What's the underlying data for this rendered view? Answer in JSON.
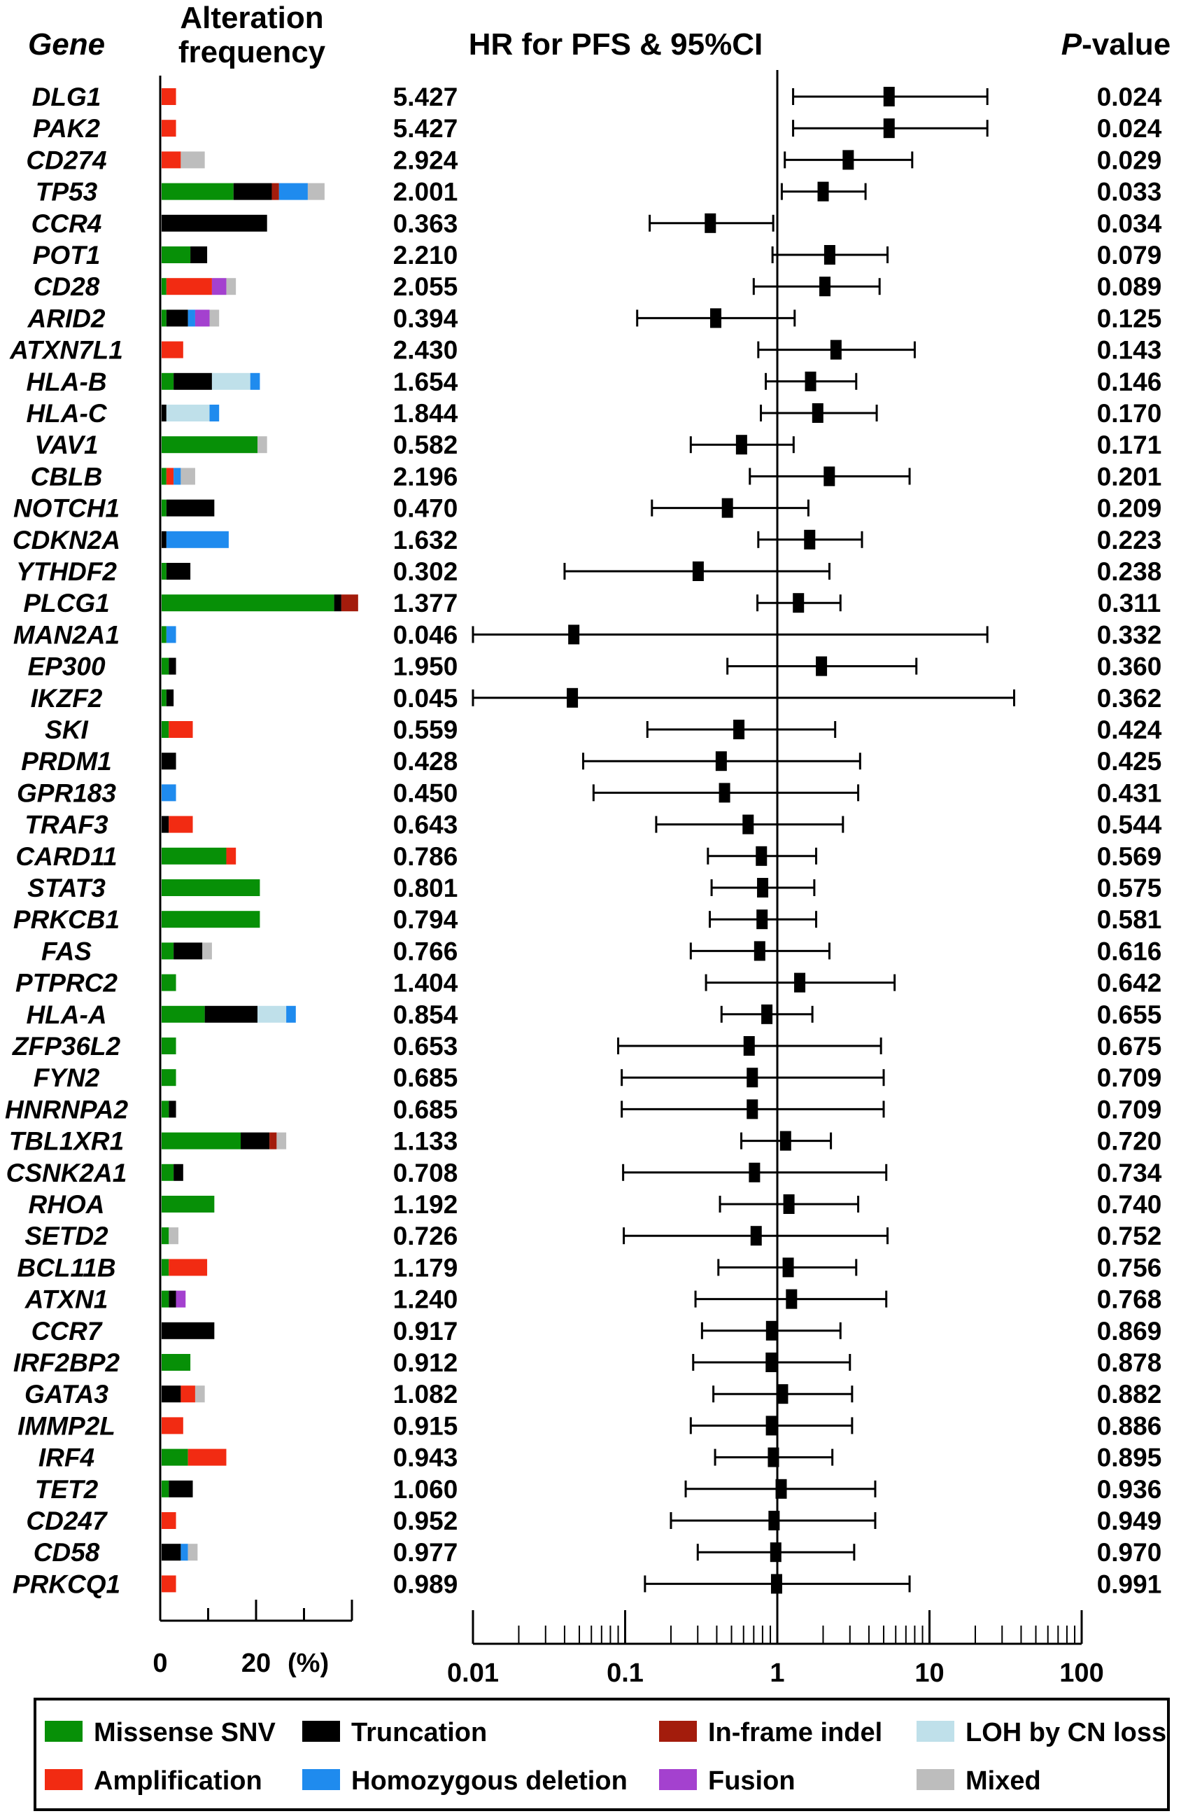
{
  "headers": {
    "gene": "Gene",
    "alteration_line1": "Alteration",
    "alteration_line2": "frequency",
    "hr": "HR for PFS & 95%CI",
    "pvalue_p": "P",
    "pvalue_rest": "-value"
  },
  "colors": {
    "missense": "#079007",
    "truncation": "#000000",
    "inframe": "#a31c0c",
    "loh": "#bfe0ea",
    "amplification": "#f22b12",
    "homdel": "#1f8bee",
    "fusion": "#a441cf",
    "mixed": "#bdbdbd"
  },
  "chart_data": [
    {
      "type": "bar",
      "orientation": "horizontal-stacked",
      "xlabel": "(%)",
      "xticks": [
        "0",
        "20"
      ],
      "xlim": [
        0,
        40
      ],
      "categories": [
        "DLG1",
        "PAK2",
        "CD274",
        "TP53",
        "CCR4",
        "POT1",
        "CD28",
        "ARID2",
        "ATXN7L1",
        "HLA-B",
        "HLA-C",
        "VAV1",
        "CBLB",
        "NOTCH1",
        "CDKN2A",
        "YTHDF2",
        "PLCG1",
        "MAN2A1",
        "EP300",
        "IKZF2",
        "SKI",
        "PRDM1",
        "GPR183",
        "TRAF3",
        "CARD11",
        "STAT3",
        "PRKCB1",
        "FAS",
        "PTPRC2",
        "HLA-A",
        "ZFP36L2",
        "FYN2",
        "HNRNPA2",
        "TBL1XR1",
        "CSNK2A1",
        "RHOA",
        "SETD2",
        "BCL11B",
        "ATXN1",
        "CCR7",
        "IRF2BP2",
        "GATA3",
        "IMMP2L",
        "IRF4",
        "TET2",
        "CD247",
        "CD58",
        "PRKCQ1"
      ],
      "series": [
        {
          "name": "Missense SNV",
          "key": "missense",
          "values": [
            0,
            0,
            0,
            15,
            0,
            6,
            1,
            1,
            0,
            2.5,
            0,
            20,
            1,
            1,
            0,
            1,
            36,
            1,
            1.5,
            1,
            1.5,
            0,
            0,
            0,
            13.5,
            20.5,
            20.5,
            2.5,
            3,
            9,
            3,
            3,
            1.5,
            16.5,
            2.5,
            11,
            1.5,
            1.5,
            1.5,
            0,
            6,
            0,
            0,
            5.5,
            1.5,
            0,
            0,
            0
          ]
        },
        {
          "name": "Truncation",
          "key": "truncation",
          "values": [
            0,
            0,
            0,
            8,
            22,
            3.5,
            0,
            4.5,
            0,
            8,
            1,
            0,
            0,
            10,
            1,
            5,
            1.5,
            0,
            1.5,
            1.5,
            0,
            3,
            0,
            1.5,
            0,
            0,
            0,
            6,
            0,
            11,
            0,
            0,
            1.5,
            6,
            2,
            0,
            0,
            0,
            1.5,
            11,
            0,
            4,
            0,
            0,
            5,
            0,
            4,
            0
          ]
        },
        {
          "name": "In-frame indel",
          "key": "inframe",
          "values": [
            0,
            0,
            0,
            1.5,
            0,
            0,
            0,
            0,
            0,
            0,
            0,
            0,
            0,
            0,
            0,
            0,
            3.5,
            0,
            0,
            0,
            0,
            0,
            0,
            0,
            0,
            0,
            0,
            0,
            0,
            0,
            0,
            0,
            0,
            1.5,
            0,
            0,
            0,
            0,
            0,
            0,
            0,
            0,
            0,
            0,
            0,
            0,
            0,
            0
          ]
        },
        {
          "name": "LOH by CN loss",
          "key": "loh",
          "values": [
            0,
            0,
            0,
            0,
            0,
            0,
            0,
            0,
            0,
            8,
            9,
            0,
            0,
            0,
            0,
            0,
            0,
            0,
            0,
            0,
            0,
            0,
            0,
            0,
            0,
            0,
            0,
            0,
            0,
            6,
            0,
            0,
            0,
            0,
            0,
            0,
            0,
            0,
            0,
            0,
            0,
            0,
            0,
            0,
            0,
            0,
            0,
            0
          ]
        },
        {
          "name": "Amplification",
          "key": "amplification",
          "values": [
            3,
            3,
            4,
            0,
            0,
            0,
            9.5,
            0,
            4.5,
            0,
            0,
            0,
            1.5,
            0,
            0,
            0,
            0,
            0,
            0,
            0,
            5,
            0,
            0,
            5,
            2,
            0,
            0,
            0,
            0,
            0,
            0,
            0,
            0,
            0,
            0,
            0,
            0,
            8,
            0,
            0,
            0,
            3,
            4.5,
            8,
            0,
            3,
            0,
            3
          ]
        },
        {
          "name": "Homozygous deletion",
          "key": "homdel",
          "values": [
            0,
            0,
            0,
            6,
            0,
            0,
            0,
            1.5,
            0,
            2,
            2,
            0,
            1.5,
            0,
            13,
            0,
            0,
            2,
            0,
            0,
            0,
            0,
            3,
            0,
            0,
            0,
            0,
            0,
            0,
            2,
            0,
            0,
            0,
            0,
            0,
            0,
            0,
            0,
            0,
            0,
            0,
            0,
            0,
            0,
            0,
            0,
            1.5,
            0
          ]
        },
        {
          "name": "Fusion",
          "key": "fusion",
          "values": [
            0,
            0,
            0,
            0,
            0,
            0,
            3,
            3,
            0,
            0,
            0,
            0,
            0,
            0,
            0,
            0,
            0,
            0,
            0,
            0,
            0,
            0,
            0,
            0,
            0,
            0,
            0,
            0,
            0,
            0,
            0,
            0,
            0,
            0,
            0,
            0,
            0,
            0,
            2,
            0,
            0,
            0,
            0,
            0,
            0,
            0,
            0,
            0
          ]
        },
        {
          "name": "Mixed",
          "key": "mixed",
          "values": [
            0,
            0,
            5,
            3.5,
            0,
            0,
            2,
            2,
            0,
            0,
            0,
            2,
            3,
            0,
            0,
            0,
            0,
            0,
            0,
            0,
            0,
            0,
            0,
            0,
            0,
            0,
            0,
            2,
            0,
            0,
            0,
            0,
            0,
            2,
            0,
            0,
            2,
            0,
            0,
            0,
            0,
            2,
            0,
            0,
            0,
            0,
            2,
            0
          ]
        }
      ]
    },
    {
      "type": "scatter",
      "subtype": "forest-plot",
      "title": "HR for PFS & 95%CI",
      "x_scale": "log",
      "xlim": [
        0.01,
        100
      ],
      "xticks": [
        "0.01",
        "0.1",
        "1",
        "10",
        "100"
      ],
      "reference_line": 1,
      "categories": [
        "DLG1",
        "PAK2",
        "CD274",
        "TP53",
        "CCR4",
        "POT1",
        "CD28",
        "ARID2",
        "ATXN7L1",
        "HLA-B",
        "HLA-C",
        "VAV1",
        "CBLB",
        "NOTCH1",
        "CDKN2A",
        "YTHDF2",
        "PLCG1",
        "MAN2A1",
        "EP300",
        "IKZF2",
        "SKI",
        "PRDM1",
        "GPR183",
        "TRAF3",
        "CARD11",
        "STAT3",
        "PRKCB1",
        "FAS",
        "PTPRC2",
        "HLA-A",
        "ZFP36L2",
        "FYN2",
        "HNRNPA2",
        "TBL1XR1",
        "CSNK2A1",
        "RHOA",
        "SETD2",
        "BCL11B",
        "ATXN1",
        "CCR7",
        "IRF2BP2",
        "GATA3",
        "IMMP2L",
        "IRF4",
        "TET2",
        "CD247",
        "CD58",
        "PRKCQ1"
      ],
      "hr": [
        5.427,
        5.427,
        2.924,
        2.001,
        0.363,
        2.21,
        2.055,
        0.394,
        2.43,
        1.654,
        1.844,
        0.582,
        2.196,
        0.47,
        1.632,
        0.302,
        1.377,
        0.046,
        1.95,
        0.045,
        0.559,
        0.428,
        0.45,
        0.643,
        0.786,
        0.801,
        0.794,
        0.766,
        1.404,
        0.854,
        0.653,
        0.685,
        0.685,
        1.133,
        0.708,
        1.192,
        0.726,
        1.179,
        1.24,
        0.917,
        0.912,
        1.082,
        0.915,
        0.943,
        1.06,
        0.952,
        0.977,
        0.989
      ],
      "hr_labels": [
        "5.427",
        "5.427",
        "2.924",
        "2.001",
        "0.363",
        "2.210",
        "2.055",
        "0.394",
        "2.430",
        "1.654",
        "1.844",
        "0.582",
        "2.196",
        "0.470",
        "1.632",
        "0.302",
        "1.377",
        "0.046",
        "1.950",
        "0.045",
        "0.559",
        "0.428",
        "0.450",
        "0.643",
        "0.786",
        "0.801",
        "0.794",
        "0.766",
        "1.404",
        "0.854",
        "0.653",
        "0.685",
        "0.685",
        "1.133",
        "0.708",
        "1.192",
        "0.726",
        "1.179",
        "1.240",
        "0.917",
        "0.912",
        "1.082",
        "0.915",
        "0.943",
        "1.060",
        "0.952",
        "0.977",
        "0.989"
      ],
      "ci_low": [
        1.27,
        1.27,
        1.12,
        1.07,
        0.145,
        0.93,
        0.7,
        0.12,
        0.75,
        0.84,
        0.78,
        0.27,
        0.66,
        0.15,
        0.75,
        0.04,
        0.74,
        0.01,
        0.47,
        0.01,
        0.14,
        0.053,
        0.062,
        0.16,
        0.35,
        0.37,
        0.36,
        0.27,
        0.34,
        0.43,
        0.09,
        0.095,
        0.095,
        0.58,
        0.097,
        0.42,
        0.098,
        0.41,
        0.29,
        0.32,
        0.28,
        0.38,
        0.27,
        0.39,
        0.25,
        0.2,
        0.3,
        0.135
      ],
      "ci_high": [
        24,
        24,
        7.7,
        3.8,
        0.94,
        5.3,
        4.7,
        1.3,
        8.0,
        3.3,
        4.5,
        1.28,
        7.4,
        1.6,
        3.6,
        2.2,
        2.6,
        24,
        8.2,
        36,
        2.4,
        3.5,
        3.4,
        2.7,
        1.8,
        1.75,
        1.8,
        2.2,
        5.9,
        1.7,
        4.8,
        5.0,
        5.0,
        2.25,
        5.2,
        3.4,
        5.3,
        3.3,
        5.2,
        2.6,
        3.0,
        3.1,
        3.1,
        2.3,
        4.4,
        4.4,
        3.2,
        7.4
      ],
      "p_values": [
        "0.024",
        "0.024",
        "0.029",
        "0.033",
        "0.034",
        "0.079",
        "0.089",
        "0.125",
        "0.143",
        "0.146",
        "0.170",
        "0.171",
        "0.201",
        "0.209",
        "0.223",
        "0.238",
        "0.311",
        "0.332",
        "0.360",
        "0.362",
        "0.424",
        "0.425",
        "0.431",
        "0.544",
        "0.569",
        "0.575",
        "0.581",
        "0.616",
        "0.642",
        "0.655",
        "0.675",
        "0.709",
        "0.709",
        "0.720",
        "0.734",
        "0.740",
        "0.752",
        "0.756",
        "0.768",
        "0.869",
        "0.878",
        "0.882",
        "0.886",
        "0.895",
        "0.936",
        "0.949",
        "0.970",
        "0.991"
      ]
    }
  ],
  "legend": [
    {
      "key": "missense",
      "label": "Missense SNV",
      "col": 0,
      "row": 0
    },
    {
      "key": "truncation",
      "label": "Truncation",
      "col": 1,
      "row": 0
    },
    {
      "key": "inframe",
      "label": "In-frame indel",
      "col": 2,
      "row": 0
    },
    {
      "key": "loh",
      "label": "LOH by CN loss",
      "col": 3,
      "row": 0
    },
    {
      "key": "amplification",
      "label": "Amplification",
      "col": 0,
      "row": 1
    },
    {
      "key": "homdel",
      "label": "Homozygous deletion",
      "col": 1,
      "row": 1
    },
    {
      "key": "fusion",
      "label": "Fusion",
      "col": 2,
      "row": 1
    },
    {
      "key": "mixed",
      "label": "Mixed",
      "col": 3,
      "row": 1
    }
  ]
}
